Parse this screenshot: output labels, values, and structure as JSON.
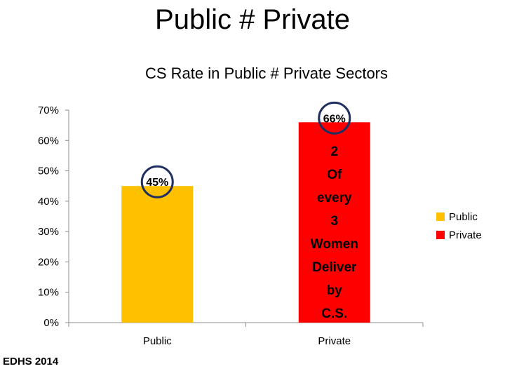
{
  "slide": {
    "title": "Public # Private",
    "footer": "EDHS 2014"
  },
  "chart_data": {
    "type": "bar",
    "title": "CS Rate in Public # Private Sectors",
    "categories": [
      "Public",
      "Private"
    ],
    "values": [
      45,
      66
    ],
    "data_labels": [
      "45%",
      "66%"
    ],
    "colors": [
      "#FFC000",
      "#FF0000"
    ],
    "ylim": [
      0,
      70
    ],
    "yticks": [
      "0%",
      "10%",
      "20%",
      "30%",
      "40%",
      "50%",
      "60%",
      "70%"
    ],
    "grid": false,
    "legend": {
      "placement": "right",
      "entries": [
        "Public",
        "Private"
      ]
    },
    "annotation": [
      "2",
      "Of",
      "every",
      "3",
      "Women",
      "Deliver",
      "by",
      "C.S."
    ],
    "highlight_circle_color": "#1F2F5F"
  }
}
